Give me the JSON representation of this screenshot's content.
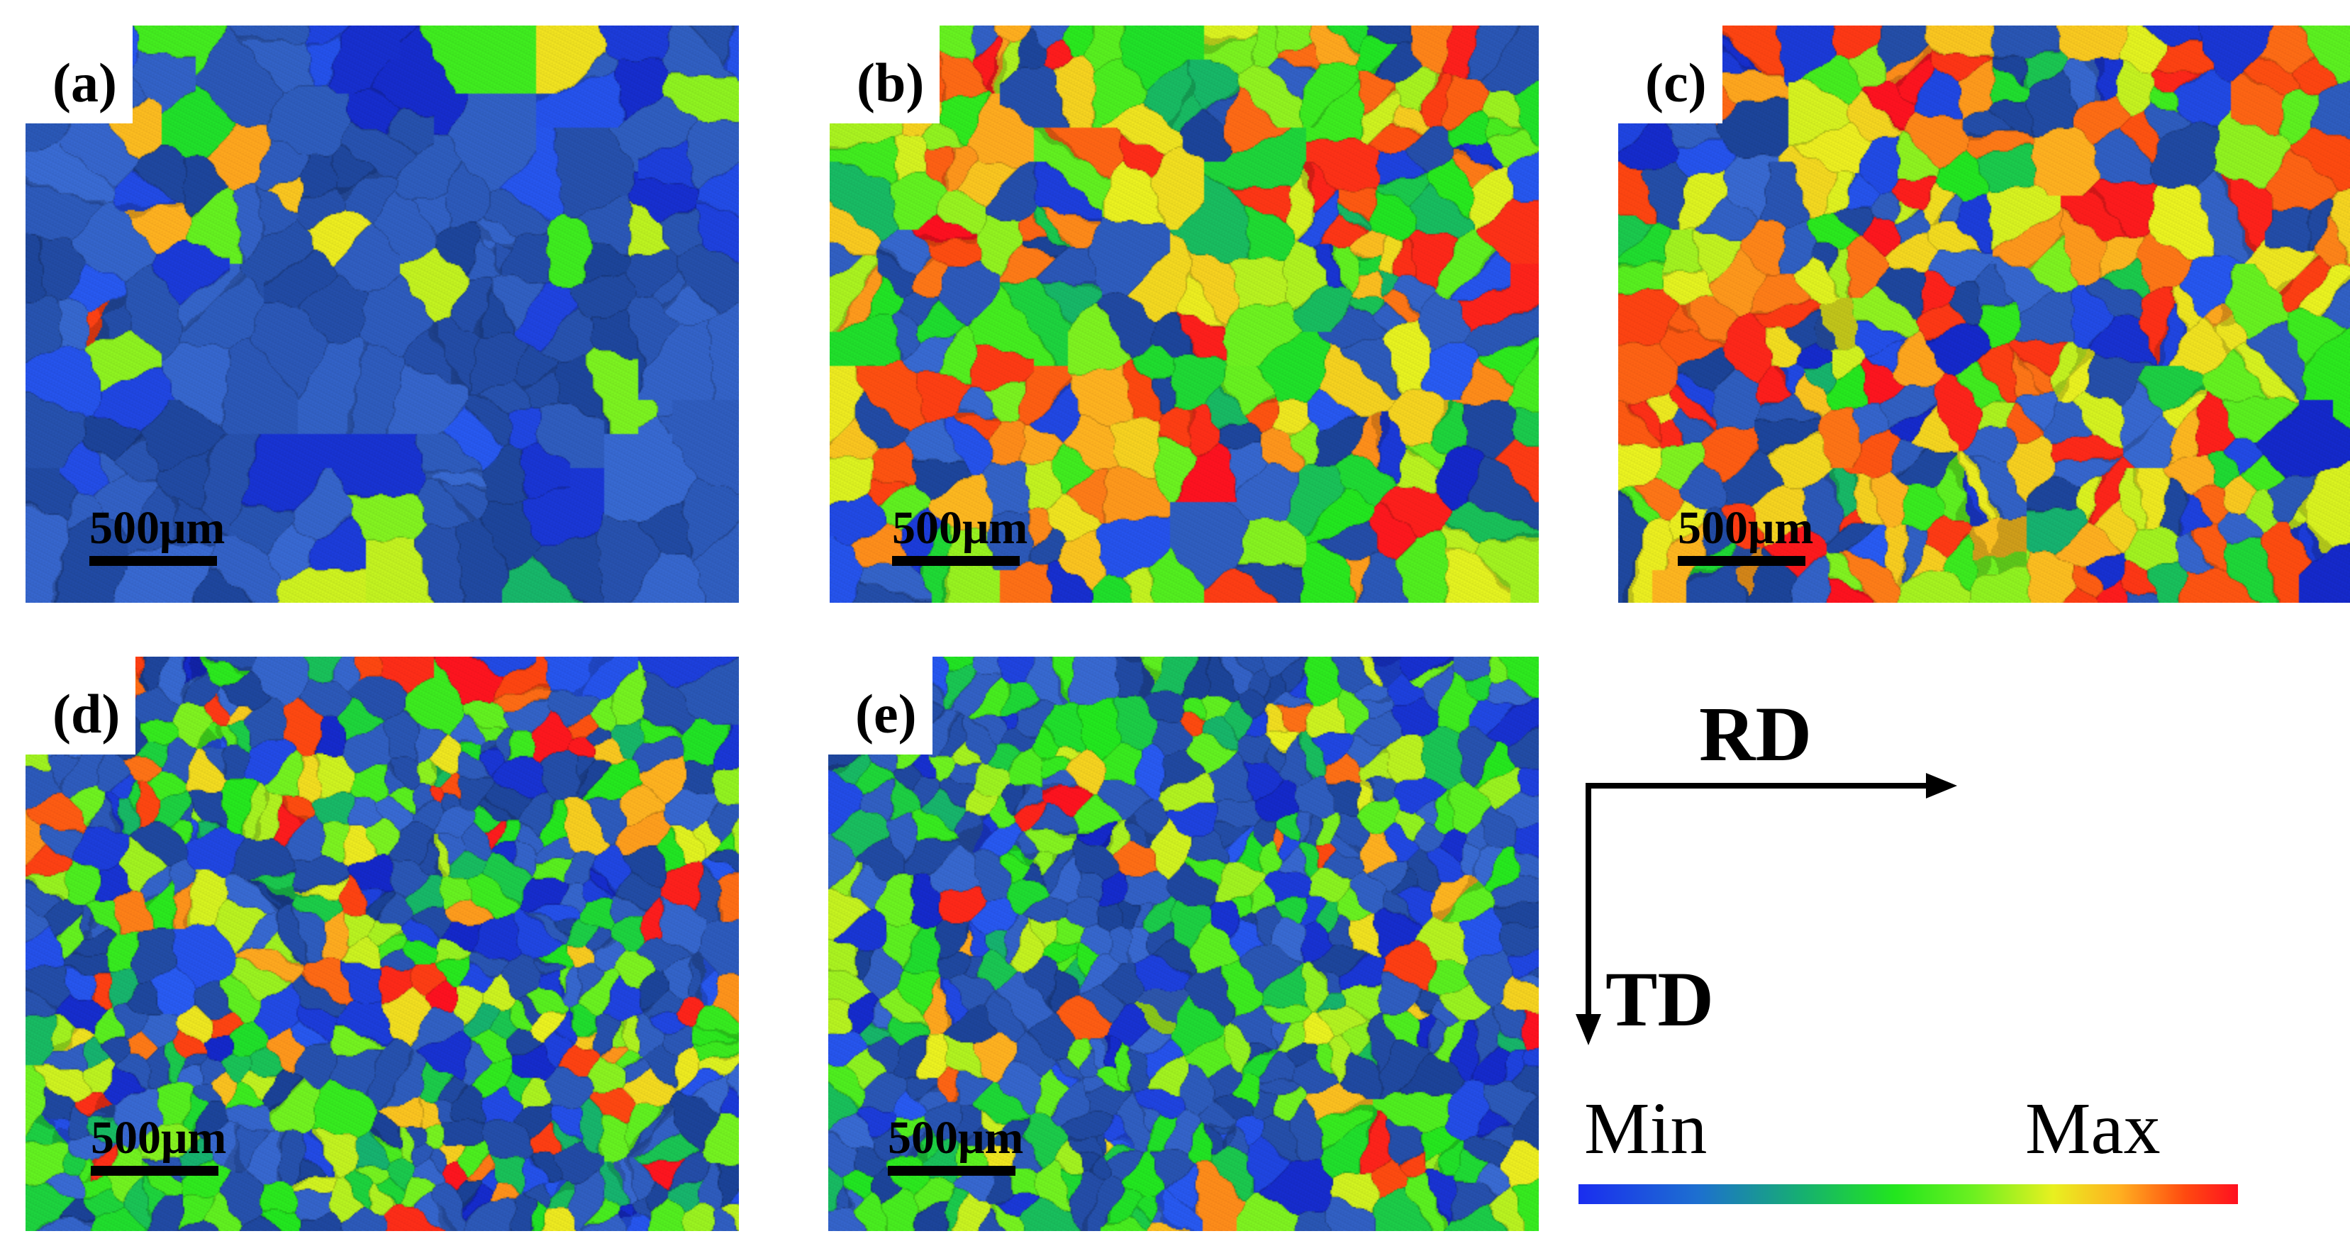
{
  "figure": {
    "panels": [
      {
        "label": "(a)",
        "scale_text": "500μm"
      },
      {
        "label": "(b)",
        "scale_text": "500μm"
      },
      {
        "label": "(c)",
        "scale_text": "500μm"
      },
      {
        "label": "(d)",
        "scale_text": "500μm"
      },
      {
        "label": "(e)",
        "scale_text": "500μm"
      }
    ],
    "axes": {
      "horizontal_label": "RD",
      "vertical_label": "TD"
    },
    "legend": {
      "min_label": "Min",
      "max_label": "Max"
    },
    "colors": {
      "scale": [
        "#1a2df0",
        "#1d6fd0",
        "#16b070",
        "#22e61e",
        "#6df020",
        "#e8f020",
        "#ffb020",
        "#ff4a10",
        "#ff1020"
      ],
      "grain_base": "#2f5bb4"
    }
  }
}
